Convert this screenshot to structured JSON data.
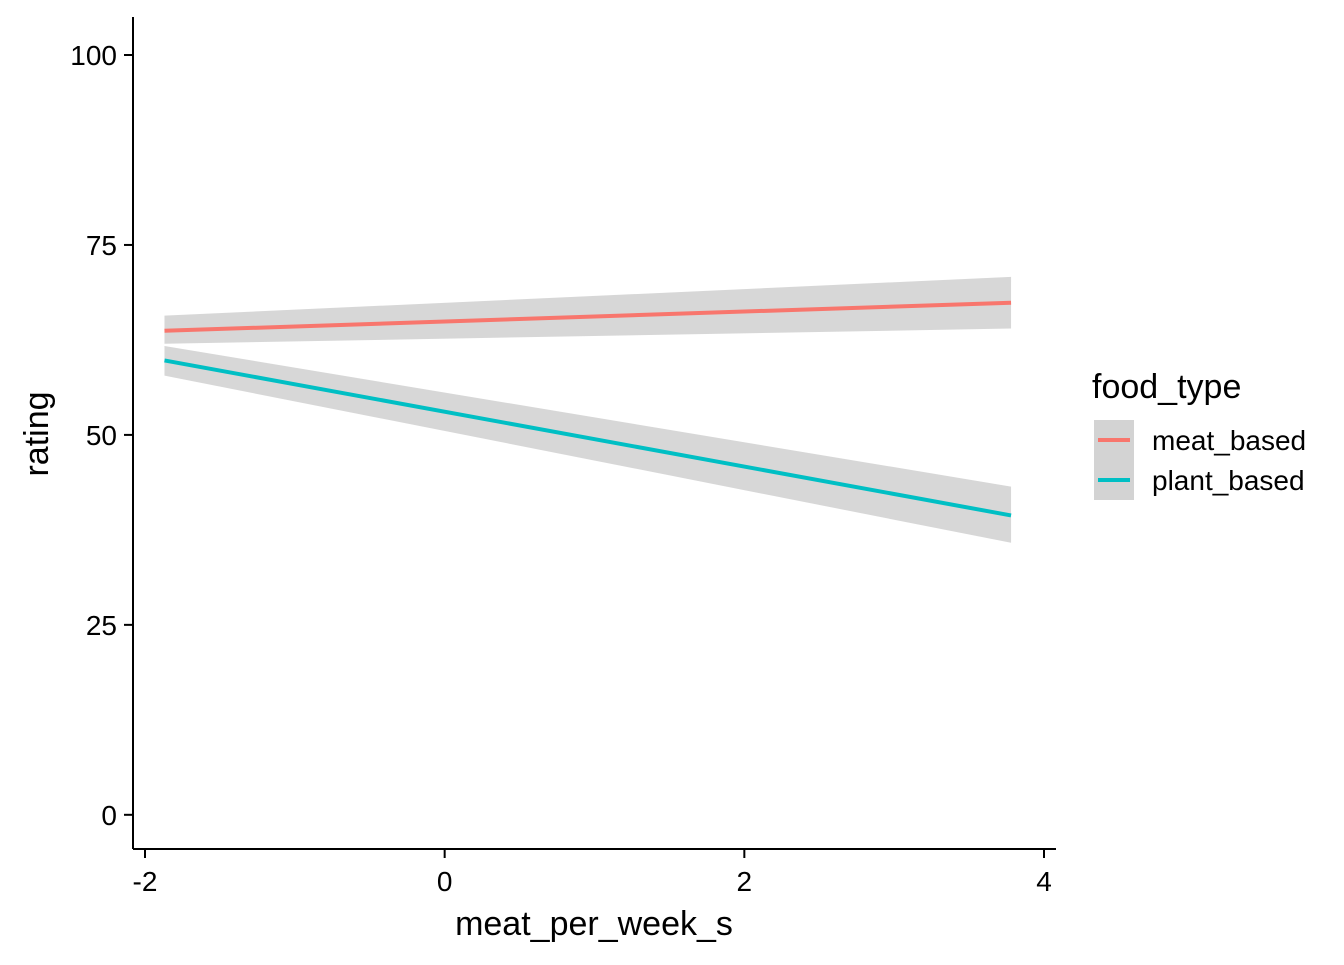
{
  "chart_data": {
    "type": "line",
    "title": "",
    "xlabel": "meat_per_week_s",
    "ylabel": "rating",
    "xlim": [
      -2.08,
      4.08
    ],
    "ylim": [
      -4.5,
      105
    ],
    "x_ticks": [
      -2,
      0,
      2,
      4
    ],
    "x_tick_labels": [
      "-2",
      "0",
      "2",
      "4"
    ],
    "y_ticks": [
      0,
      25,
      50,
      75,
      100
    ],
    "y_tick_labels": [
      "0",
      "25",
      "50",
      "75",
      "100"
    ],
    "grid": false,
    "legend": {
      "title": "food_type",
      "position": "right"
    },
    "series": [
      {
        "name": "meat_based",
        "color": "#F8766D",
        "x": [
          -1.87,
          3.78
        ],
        "y": [
          63.7,
          67.4
        ],
        "ci_lower": [
          62.0,
          64.0
        ],
        "ci_upper": [
          65.7,
          70.8
        ]
      },
      {
        "name": "plant_based",
        "color": "#00BFC4",
        "x": [
          -1.87,
          3.78
        ],
        "y": [
          59.8,
          39.4
        ],
        "ci_lower": [
          57.8,
          35.8
        ],
        "ci_upper": [
          61.7,
          43.2
        ]
      }
    ],
    "ribbon_color": "#D3D3D3"
  }
}
